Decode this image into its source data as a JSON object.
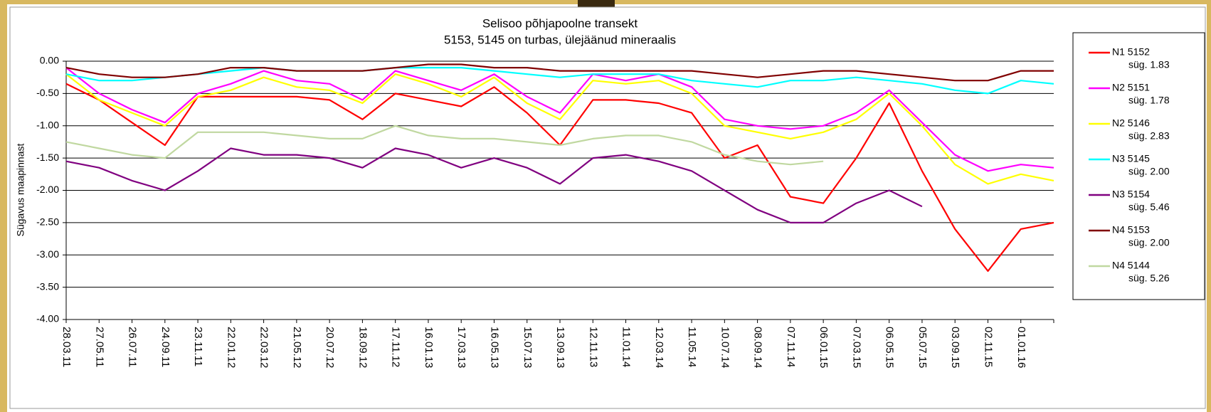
{
  "chart_data": {
    "type": "line",
    "title": "Selisoo põhjapoolne transekt",
    "subtitle": "5153, 5145 on turbas, ülejäänud  mineraalis",
    "y_label": "Sügavus  maapinnast",
    "categories": [
      "28.03.11",
      "27.05.11",
      "26.07.11",
      "24.09.11",
      "23.11.11",
      "22.01.12",
      "22.03.12",
      "21.05.12",
      "20.07.12",
      "18.09.12",
      "17.11.12",
      "16.01.13",
      "17.03.13",
      "16.05.13",
      "15.07.13",
      "13.09.13",
      "12.11.13",
      "11.01.14",
      "12.03.14",
      "11.05.14",
      "10.07.14",
      "08.09.14",
      "07.11.14",
      "06.01.15",
      "07.03.15",
      "06.05.15",
      "05.07.15",
      "03.09.15",
      "02.11.15",
      "01.01.16",
      null
    ],
    "ylim": [
      -4,
      0
    ],
    "yticks": [
      {
        "value": 0,
        "label": "0.00"
      },
      {
        "value": -0.5,
        "label": "-0.50"
      },
      {
        "value": -1,
        "label": "-1.00"
      },
      {
        "value": -1.5,
        "label": "-1.50"
      },
      {
        "value": -2,
        "label": "-2.00"
      },
      {
        "value": -2.5,
        "label": "-2.50"
      },
      {
        "value": -3,
        "label": "-3.00"
      },
      {
        "value": -3.5,
        "label": "-3.50"
      },
      {
        "value": -4,
        "label": "-4.00"
      }
    ],
    "grid": true,
    "legend": "right",
    "series": [
      {
        "name": "N1 5152",
        "depth": "süg. 1.83",
        "color": "#ff0000",
        "values": [
          -0.35,
          -0.6,
          -0.95,
          -1.3,
          -0.55,
          -0.55,
          -0.55,
          -0.55,
          -0.6,
          -0.9,
          -0.5,
          -0.6,
          -0.7,
          -0.4,
          -0.8,
          -1.3,
          -0.6,
          -0.6,
          -0.65,
          -0.8,
          -1.5,
          -1.3,
          -2.1,
          -2.2,
          -1.5,
          -0.65,
          -1.7,
          -2.6,
          -3.25,
          -2.6,
          -2.5
        ]
      },
      {
        "name": "N2 5151",
        "depth": "süg. 1.78",
        "color": "#ff00ff",
        "values": [
          -0.1,
          -0.5,
          -0.75,
          -0.95,
          -0.5,
          -0.35,
          -0.15,
          -0.3,
          -0.35,
          -0.6,
          -0.15,
          -0.3,
          -0.45,
          -0.2,
          -0.55,
          -0.8,
          -0.2,
          -0.3,
          -0.2,
          -0.4,
          -0.9,
          -1.0,
          -1.05,
          -1.0,
          -0.8,
          -0.45,
          -0.95,
          -1.45,
          -1.7,
          -1.6,
          -1.65
        ]
      },
      {
        "name": "N2 5146",
        "depth": "süg. 2.83",
        "color": "#ffff00",
        "values": [
          -0.2,
          -0.6,
          -0.8,
          -1.0,
          -0.55,
          -0.45,
          -0.25,
          -0.4,
          -0.45,
          -0.65,
          -0.2,
          -0.35,
          -0.55,
          -0.25,
          -0.65,
          -0.9,
          -0.3,
          -0.35,
          -0.3,
          -0.5,
          -1.0,
          -1.1,
          -1.2,
          -1.1,
          -0.9,
          -0.5,
          -1.0,
          -1.6,
          -1.9,
          -1.75,
          -1.85
        ]
      },
      {
        "name": "N3 5145",
        "depth": "süg. 2.00",
        "color": "#00ffff",
        "values": [
          -0.2,
          -0.3,
          -0.3,
          -0.25,
          -0.2,
          -0.15,
          -0.1,
          -0.15,
          -0.15,
          -0.15,
          -0.1,
          -0.1,
          -0.1,
          -0.15,
          -0.2,
          -0.25,
          -0.2,
          -0.2,
          -0.2,
          -0.3,
          -0.35,
          -0.4,
          -0.3,
          -0.3,
          -0.25,
          -0.3,
          -0.35,
          -0.45,
          -0.5,
          -0.3,
          -0.35
        ]
      },
      {
        "name": "N3 5154",
        "depth": "süg. 5.46",
        "color": "#800080",
        "values": [
          -1.55,
          -1.65,
          -1.85,
          -2.0,
          -1.7,
          -1.35,
          -1.45,
          -1.45,
          -1.5,
          -1.65,
          -1.35,
          -1.45,
          -1.65,
          -1.5,
          -1.65,
          -1.9,
          -1.5,
          -1.45,
          -1.55,
          -1.7,
          -2.0,
          -2.3,
          -2.5,
          -2.5,
          -2.2,
          -2.0,
          -2.25,
          null,
          null,
          null,
          null
        ]
      },
      {
        "name": "N4 5153",
        "depth": "süg. 2.00",
        "color": "#800000",
        "values": [
          -0.1,
          -0.2,
          -0.25,
          -0.25,
          -0.2,
          -0.1,
          -0.1,
          -0.15,
          -0.15,
          -0.15,
          -0.1,
          -0.05,
          -0.05,
          -0.1,
          -0.1,
          -0.15,
          -0.15,
          -0.15,
          -0.15,
          -0.15,
          -0.2,
          -0.25,
          -0.2,
          -0.15,
          -0.15,
          -0.2,
          -0.25,
          -0.3,
          -0.3,
          -0.15,
          -0.15
        ]
      },
      {
        "name": "N4 5144",
        "depth": "süg. 5.26",
        "color": "#c0d8a0",
        "values": [
          -1.25,
          -1.35,
          -1.45,
          -1.5,
          -1.1,
          -1.1,
          -1.1,
          -1.15,
          -1.2,
          -1.2,
          -1.0,
          -1.15,
          -1.2,
          -1.2,
          -1.25,
          -1.3,
          -1.2,
          -1.15,
          -1.15,
          -1.25,
          -1.45,
          -1.55,
          -1.6,
          -1.55,
          null,
          null,
          null,
          null,
          null,
          null,
          null
        ]
      }
    ]
  }
}
